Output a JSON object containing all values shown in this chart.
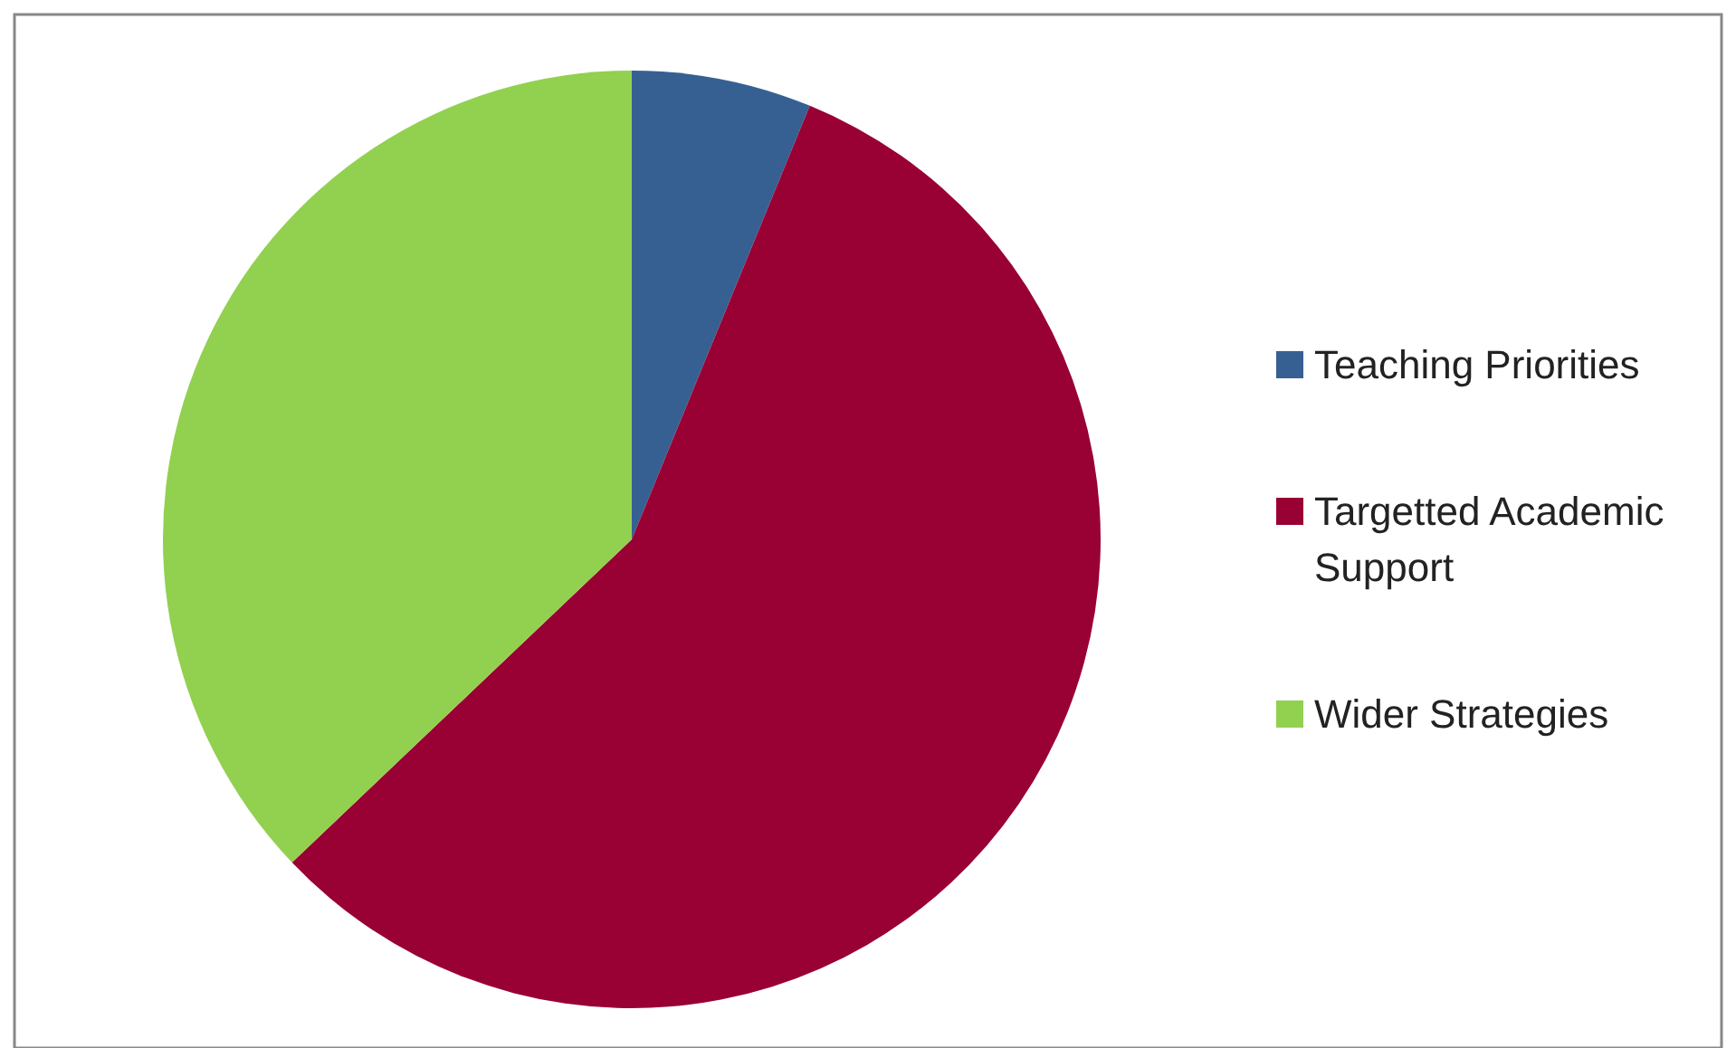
{
  "chart_data": {
    "type": "pie",
    "categories": [
      "Teaching Priorities",
      "Targetted Academic Support",
      "Wider Strategies"
    ],
    "values": [
      6.2,
      56.7,
      37.1
    ],
    "colors": [
      "#376092",
      "#990033",
      "#92d050"
    ],
    "legend": "right"
  }
}
